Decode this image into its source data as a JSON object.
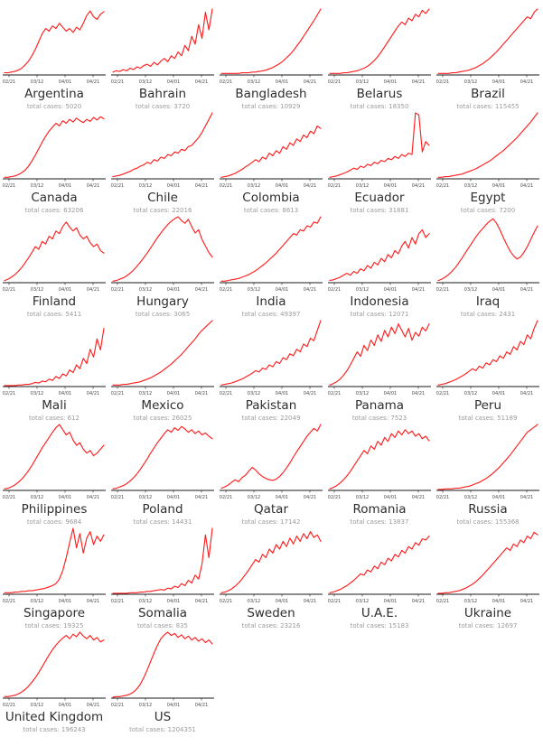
{
  "figure": {
    "background": "#ffffff"
  },
  "colors": {
    "line": "#ff1f1f",
    "axis": "#1a1a1a",
    "tick_label": "#4a4a4a",
    "country_label": "#2e2e2e",
    "total_label": "#9b9b9b"
  },
  "labels": {
    "total_prefix": "total cases: "
  },
  "chart_data": {
    "type": "line",
    "layout": "small-multiples 5 columns x 7 rows",
    "x_tick_labels": [
      "02/21",
      "03/12",
      "04/01",
      "04/21"
    ],
    "y_axis": "hidden (values below are relative 0-100 estimates of the red curve shape)",
    "charts": [
      {
        "country": "Argentina",
        "total_cases": 5020,
        "total_text": "total cases: 5020",
        "values": [
          2,
          2,
          3,
          4,
          6,
          9,
          14,
          20,
          28,
          38,
          50,
          62,
          70,
          66,
          74,
          70,
          78,
          72,
          66,
          70,
          64,
          72,
          68,
          78,
          90,
          97,
          88,
          84,
          92,
          96
        ]
      },
      {
        "country": "Bahrain",
        "total_cases": 3720,
        "total_text": "total cases: 3720",
        "values": [
          3,
          5,
          4,
          7,
          5,
          9,
          7,
          11,
          9,
          13,
          15,
          12,
          18,
          14,
          20,
          24,
          19,
          28,
          24,
          34,
          28,
          44,
          36,
          58,
          46,
          76,
          55,
          95,
          68,
          100
        ]
      },
      {
        "country": "Bangladesh",
        "total_cases": 10929,
        "total_text": "total cases: 10929",
        "values": [
          1,
          1,
          1,
          1,
          1,
          1,
          2,
          2,
          2,
          3,
          3,
          4,
          5,
          6,
          8,
          10,
          13,
          16,
          20,
          25,
          30,
          36,
          43,
          50,
          58,
          66,
          74,
          82,
          91,
          100
        ]
      },
      {
        "country": "Belarus",
        "total_cases": 18350,
        "total_text": "total cases: 18350",
        "values": [
          1,
          1,
          1,
          1,
          2,
          2,
          3,
          4,
          5,
          7,
          9,
          12,
          16,
          21,
          27,
          34,
          42,
          50,
          58,
          66,
          74,
          80,
          76,
          86,
          82,
          92,
          88,
          98,
          93,
          100
        ]
      },
      {
        "country": "Brazil",
        "total_cases": 115455,
        "total_text": "total cases: 115455",
        "values": [
          1,
          1,
          1,
          1,
          2,
          2,
          3,
          4,
          5,
          6,
          8,
          10,
          13,
          16,
          20,
          24,
          29,
          34,
          40,
          46,
          52,
          58,
          64,
          70,
          76,
          82,
          88,
          85,
          95,
          100
        ]
      },
      {
        "country": "Canada",
        "total_cases": 63206,
        "total_text": "total cases: 63206",
        "values": [
          1,
          1,
          2,
          3,
          5,
          8,
          12,
          18,
          26,
          35,
          45,
          55,
          64,
          72,
          78,
          84,
          80,
          88,
          84,
          90,
          86,
          92,
          88,
          85,
          90,
          87,
          93,
          89,
          94,
          91
        ]
      },
      {
        "country": "Chile",
        "total_cases": 22016,
        "total_text": "total cases: 22016",
        "values": [
          2,
          3,
          4,
          6,
          8,
          10,
          13,
          15,
          18,
          20,
          24,
          22,
          28,
          26,
          32,
          30,
          36,
          34,
          40,
          38,
          44,
          42,
          48,
          50,
          56,
          62,
          70,
          80,
          90,
          100
        ]
      },
      {
        "country": "Colombia",
        "total_cases": 8613,
        "total_text": "total cases: 8613",
        "values": [
          1,
          2,
          3,
          5,
          7,
          10,
          13,
          17,
          20,
          24,
          28,
          25,
          32,
          29,
          38,
          34,
          42,
          38,
          48,
          44,
          54,
          50,
          60,
          56,
          66,
          62,
          72,
          68,
          80,
          76
        ]
      },
      {
        "country": "Ecuador",
        "total_cases": 31881,
        "total_text": "total cases: 31881",
        "values": [
          1,
          2,
          3,
          5,
          7,
          9,
          12,
          15,
          13,
          18,
          16,
          21,
          19,
          24,
          22,
          27,
          25,
          30,
          28,
          33,
          30,
          36,
          33,
          38,
          36,
          100,
          97,
          40,
          56,
          50
        ]
      },
      {
        "country": "Egypt",
        "total_cases": 7200,
        "total_text": "total cases: 7200",
        "values": [
          1,
          1,
          2,
          2,
          3,
          4,
          5,
          6,
          8,
          10,
          12,
          14,
          17,
          20,
          23,
          26,
          30,
          34,
          38,
          42,
          47,
          52,
          57,
          62,
          68,
          74,
          80,
          86,
          93,
          100
        ]
      },
      {
        "country": "Finland",
        "total_cases": 5411,
        "total_text": "total cases: 5411",
        "values": [
          2,
          4,
          7,
          11,
          16,
          22,
          29,
          37,
          45,
          54,
          50,
          62,
          58,
          70,
          66,
          78,
          74,
          85,
          92,
          84,
          78,
          83,
          72,
          66,
          70,
          60,
          54,
          58,
          48,
          44
        ]
      },
      {
        "country": "Hungary",
        "total_cases": 3065,
        "total_text": "total cases: 3065",
        "values": [
          1,
          2,
          4,
          6,
          9,
          13,
          18,
          24,
          30,
          37,
          44,
          52,
          60,
          68,
          75,
          82,
          88,
          93,
          97,
          100,
          94,
          90,
          96,
          85,
          75,
          80,
          65,
          55,
          45,
          38
        ]
      },
      {
        "country": "India",
        "total_cases": 49397,
        "total_text": "total cases: 49397",
        "values": [
          1,
          1,
          2,
          3,
          4,
          5,
          7,
          9,
          11,
          14,
          17,
          21,
          25,
          29,
          34,
          39,
          44,
          50,
          56,
          62,
          68,
          74,
          72,
          80,
          78,
          86,
          84,
          92,
          90,
          100
        ]
      },
      {
        "country": "Indonesia",
        "total_cases": 12071,
        "total_text": "total cases: 12071",
        "values": [
          2,
          3,
          5,
          7,
          10,
          13,
          10,
          16,
          13,
          20,
          17,
          25,
          21,
          30,
          26,
          36,
          31,
          42,
          37,
          48,
          43,
          55,
          62,
          52,
          68,
          58,
          74,
          80,
          68,
          74
        ]
      },
      {
        "country": "Iraq",
        "total_cases": 2431,
        "total_text": "total cases: 2431",
        "values": [
          2,
          4,
          7,
          11,
          16,
          22,
          29,
          37,
          45,
          53,
          61,
          69,
          76,
          82,
          88,
          93,
          97,
          90,
          80,
          68,
          57,
          47,
          40,
          35,
          38,
          45,
          54,
          65,
          76,
          86
        ]
      },
      {
        "country": "Mali",
        "total_cases": 612,
        "total_text": "total cases: 612",
        "values": [
          0,
          0,
          0,
          0,
          1,
          1,
          2,
          2,
          3,
          5,
          4,
          7,
          6,
          10,
          8,
          14,
          11,
          18,
          15,
          24,
          20,
          32,
          26,
          42,
          34,
          56,
          44,
          72,
          55,
          88
        ]
      },
      {
        "country": "Mexico",
        "total_cases": 26025,
        "total_text": "total cases: 26025",
        "values": [
          1,
          1,
          1,
          2,
          2,
          3,
          4,
          5,
          6,
          8,
          10,
          12,
          15,
          18,
          21,
          25,
          29,
          33,
          38,
          43,
          48,
          54,
          60,
          66,
          72,
          79,
          85,
          90,
          95,
          100
        ]
      },
      {
        "country": "Pakistan",
        "total_cases": 22049,
        "total_text": "total cases: 22049",
        "values": [
          1,
          2,
          3,
          4,
          6,
          8,
          10,
          13,
          16,
          19,
          23,
          21,
          27,
          25,
          32,
          29,
          37,
          34,
          43,
          40,
          49,
          46,
          56,
          52,
          64,
          60,
          73,
          69,
          85,
          100
        ]
      },
      {
        "country": "Panama",
        "total_cases": 7523,
        "total_text": "total cases: 7523",
        "values": [
          1,
          3,
          6,
          10,
          16,
          23,
          32,
          42,
          52,
          45,
          62,
          54,
          70,
          62,
          78,
          68,
          85,
          75,
          90,
          80,
          95,
          85,
          75,
          88,
          70,
          82,
          76,
          90,
          84,
          95
        ]
      },
      {
        "country": "Peru",
        "total_cases": 51189,
        "total_text": "total cases: 51189",
        "values": [
          1,
          2,
          3,
          5,
          7,
          9,
          12,
          15,
          18,
          22,
          26,
          23,
          30,
          27,
          35,
          32,
          40,
          37,
          46,
          42,
          52,
          48,
          60,
          55,
          68,
          63,
          78,
          72,
          88,
          100
        ]
      },
      {
        "country": "Philippines",
        "total_cases": 9684,
        "total_text": "total cases: 9684",
        "values": [
          1,
          2,
          4,
          7,
          11,
          16,
          22,
          29,
          37,
          46,
          55,
          64,
          72,
          80,
          88,
          95,
          100,
          92,
          84,
          88,
          76,
          68,
          72,
          62,
          56,
          60,
          52,
          56,
          62,
          68
        ]
      },
      {
        "country": "Poland",
        "total_cases": 14431,
        "total_text": "total cases: 14431",
        "values": [
          1,
          2,
          4,
          6,
          9,
          13,
          18,
          24,
          31,
          39,
          47,
          56,
          64,
          72,
          79,
          86,
          92,
          88,
          95,
          91,
          97,
          93,
          88,
          92,
          86,
          90,
          84,
          87,
          82,
          78
        ]
      },
      {
        "country": "Qatar",
        "total_cases": 17142,
        "total_text": "total cases: 17142",
        "values": [
          2,
          4,
          7,
          11,
          15,
          12,
          18,
          22,
          28,
          34,
          30,
          24,
          20,
          17,
          15,
          14,
          16,
          20,
          26,
          33,
          41,
          50,
          58,
          66,
          74,
          82,
          88,
          94,
          90,
          100
        ]
      },
      {
        "country": "Romania",
        "total_cases": 13837,
        "total_text": "total cases: 13837",
        "values": [
          1,
          3,
          6,
          10,
          15,
          21,
          28,
          36,
          44,
          52,
          60,
          55,
          67,
          62,
          74,
          68,
          80,
          74,
          86,
          80,
          90,
          84,
          92,
          86,
          90,
          82,
          86,
          78,
          82,
          75
        ]
      },
      {
        "country": "Russia",
        "total_cases": 155368,
        "total_text": "total cases: 155368",
        "values": [
          0,
          0,
          1,
          1,
          1,
          2,
          2,
          3,
          4,
          5,
          7,
          9,
          11,
          14,
          17,
          21,
          25,
          30,
          35,
          41,
          47,
          53,
          60,
          67,
          74,
          81,
          88,
          92,
          96,
          100
        ]
      },
      {
        "country": "Singapore",
        "total_cases": 19325,
        "total_text": "total cases: 19325",
        "values": [
          1,
          1,
          1,
          2,
          2,
          3,
          3,
          4,
          4,
          5,
          6,
          7,
          8,
          10,
          12,
          15,
          22,
          35,
          55,
          78,
          100,
          70,
          92,
          62,
          85,
          95,
          75,
          88,
          80,
          90
        ]
      },
      {
        "country": "Somalia",
        "total_cases": 835,
        "total_text": "total cases: 835",
        "values": [
          0,
          0,
          0,
          0,
          0,
          1,
          1,
          1,
          2,
          2,
          3,
          3,
          4,
          5,
          6,
          5,
          8,
          7,
          11,
          9,
          15,
          12,
          20,
          16,
          28,
          22,
          45,
          90,
          55,
          100
        ]
      },
      {
        "country": "Sweden",
        "total_cases": 23216,
        "total_text": "total cases: 23216",
        "values": [
          1,
          2,
          4,
          7,
          11,
          16,
          22,
          29,
          36,
          44,
          52,
          48,
          60,
          55,
          68,
          62,
          75,
          68,
          80,
          72,
          85,
          76,
          88,
          80,
          92,
          84,
          95,
          86,
          90,
          80
        ]
      },
      {
        "country": "U.A.E.",
        "total_cases": 15183,
        "total_text": "total cases: 15183",
        "values": [
          1,
          2,
          4,
          6,
          9,
          12,
          16,
          20,
          25,
          30,
          28,
          36,
          33,
          42,
          38,
          48,
          44,
          54,
          50,
          60,
          56,
          66,
          62,
          72,
          68,
          78,
          74,
          84,
          82,
          88
        ]
      },
      {
        "country": "Ukraine",
        "total_cases": 12697,
        "total_text": "total cases: 12697",
        "values": [
          0,
          0,
          1,
          1,
          2,
          3,
          4,
          6,
          8,
          11,
          14,
          18,
          23,
          28,
          34,
          40,
          46,
          52,
          58,
          64,
          70,
          66,
          76,
          72,
          82,
          78,
          88,
          84,
          94,
          90
        ]
      },
      {
        "country": "United Kingdom",
        "total_cases": 196243,
        "total_text": "total cases: 196243",
        "values": [
          1,
          1,
          2,
          3,
          5,
          8,
          12,
          17,
          23,
          30,
          38,
          47,
          56,
          65,
          73,
          80,
          86,
          91,
          95,
          90,
          97,
          93,
          100,
          94,
          90,
          95,
          88,
          92,
          85,
          88
        ]
      },
      {
        "country": "US",
        "total_cases": 1204351,
        "total_text": "total cases: 1204351",
        "values": [
          0,
          1,
          1,
          2,
          3,
          5,
          8,
          13,
          20,
          30,
          42,
          55,
          68,
          80,
          90,
          96,
          100,
          95,
          98,
          92,
          96,
          90,
          94,
          88,
          92,
          86,
          90,
          84,
          88,
          82
        ]
      }
    ]
  }
}
